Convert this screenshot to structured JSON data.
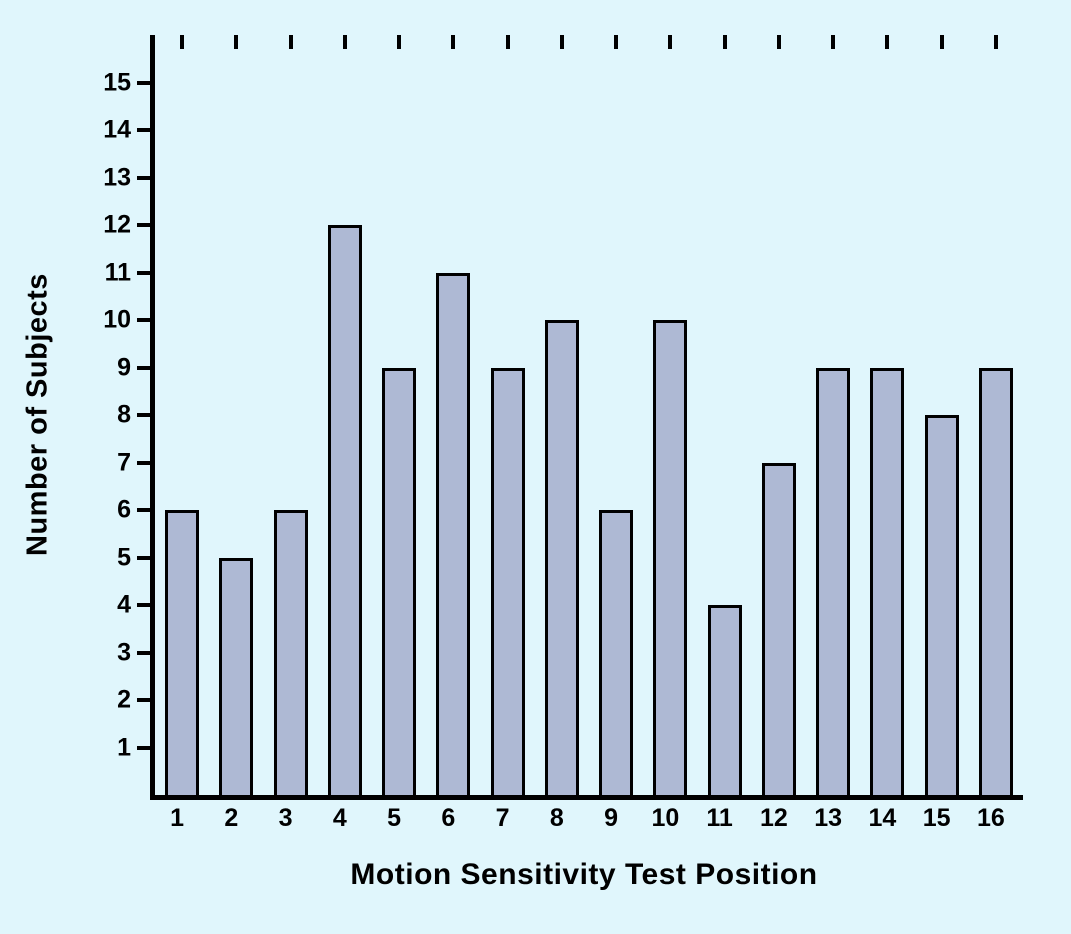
{
  "chart_data": {
    "type": "bar",
    "title": "",
    "xlabel": "Motion Sensitivity Test Position",
    "ylabel": "Number of Subjects",
    "categories": [
      "1",
      "2",
      "3",
      "4",
      "5",
      "6",
      "7",
      "8",
      "9",
      "10",
      "11",
      "12",
      "13",
      "14",
      "15",
      "16"
    ],
    "values": [
      6,
      5,
      6,
      12,
      9,
      11,
      9,
      10,
      6,
      10,
      4,
      7,
      9,
      9,
      8,
      9
    ],
    "ylim": [
      0,
      16
    ],
    "yticks": [
      1,
      2,
      3,
      4,
      5,
      6,
      7,
      8,
      9,
      10,
      11,
      12,
      13,
      14,
      15
    ],
    "grid": false,
    "legend": false
  },
  "colors": {
    "background": "#e0f6fc",
    "bar_fill": "#aeb9d4",
    "axis": "#000000"
  }
}
